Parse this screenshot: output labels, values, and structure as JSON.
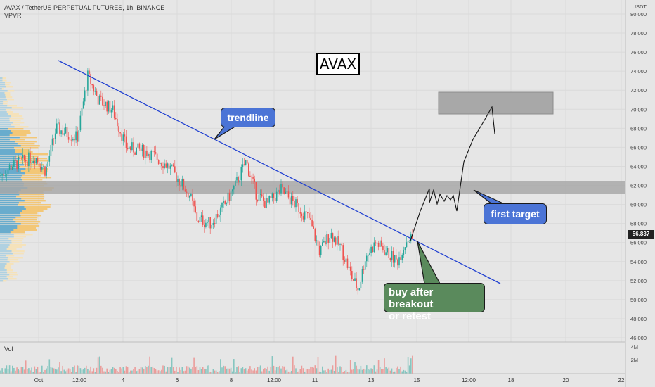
{
  "header": {
    "symbol_line": "AVAX / TetherUS PERPETUAL FUTURES, 1h, BINANCE",
    "indicator": "VPVR",
    "volume_label": "Vol"
  },
  "axis": {
    "currency": "USDT",
    "y_labels": [
      "80.000",
      "78.000",
      "76.000",
      "74.000",
      "72.000",
      "70.000",
      "68.000",
      "66.000",
      "64.000",
      "62.000",
      "60.000",
      "58.000",
      "56.000",
      "54.000",
      "52.000",
      "50.000",
      "48.000",
      "46.000"
    ],
    "volume_labels": [
      "4M",
      "2M"
    ],
    "x_labels": [
      "Oct",
      "12:00",
      "4",
      "6",
      "8",
      "12:00",
      "11",
      "13",
      "15",
      "12:00",
      "18",
      "20",
      "22"
    ]
  },
  "last_price": "56.837",
  "annotations": {
    "title_box": "AVAX",
    "trendline": "trendline",
    "first_target": "first target",
    "buy": "buy after breakout\nor retest"
  },
  "colors": {
    "up": "#26a69a",
    "down": "#ef5350",
    "trendline": "#1f3fd1",
    "zone": "#a8a8a8",
    "callout_blue": "#4b74d6",
    "callout_green": "#5a8a5c"
  },
  "chart_data": {
    "type": "candlestick",
    "y_range": [
      46,
      80
    ],
    "zones": [
      {
        "from": 61.1,
        "to": 62.5
      },
      {
        "from": 69.5,
        "to": 71.8
      }
    ]
  }
}
